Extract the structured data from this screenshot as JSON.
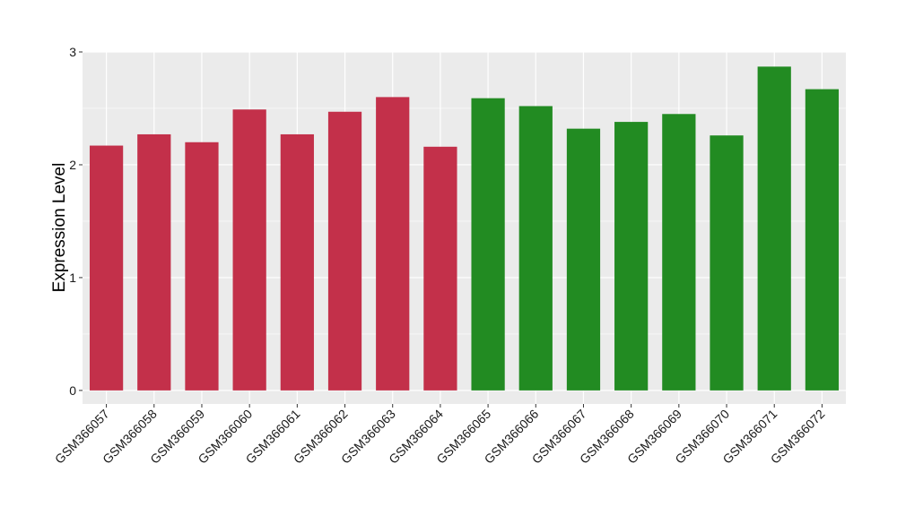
{
  "chart_data": {
    "type": "bar",
    "ylabel": "Expression Level",
    "xlabel": "",
    "title": "",
    "ylim": [
      -0.12,
      3.0
    ],
    "yticks": [
      0,
      1,
      2,
      3
    ],
    "grid": true,
    "legend": "none",
    "colors": {
      "group_a": "#C3304A",
      "group_b": "#228B22",
      "panel": "#EBEBEB",
      "gridline": "#FFFFFF"
    },
    "categories": [
      "GSM366057",
      "GSM366058",
      "GSM366059",
      "GSM366060",
      "GSM366061",
      "GSM366062",
      "GSM366063",
      "GSM366064",
      "GSM366065",
      "GSM366066",
      "GSM366067",
      "GSM366068",
      "GSM366069",
      "GSM366070",
      "GSM366071",
      "GSM366072"
    ],
    "values": [
      2.17,
      2.27,
      2.2,
      2.49,
      2.27,
      2.47,
      2.6,
      2.16,
      2.59,
      2.52,
      2.32,
      2.38,
      2.45,
      2.26,
      2.87,
      2.67
    ],
    "bar_groups": [
      "group_a",
      "group_a",
      "group_a",
      "group_a",
      "group_a",
      "group_a",
      "group_a",
      "group_a",
      "group_b",
      "group_b",
      "group_b",
      "group_b",
      "group_b",
      "group_b",
      "group_b",
      "group_b"
    ]
  }
}
